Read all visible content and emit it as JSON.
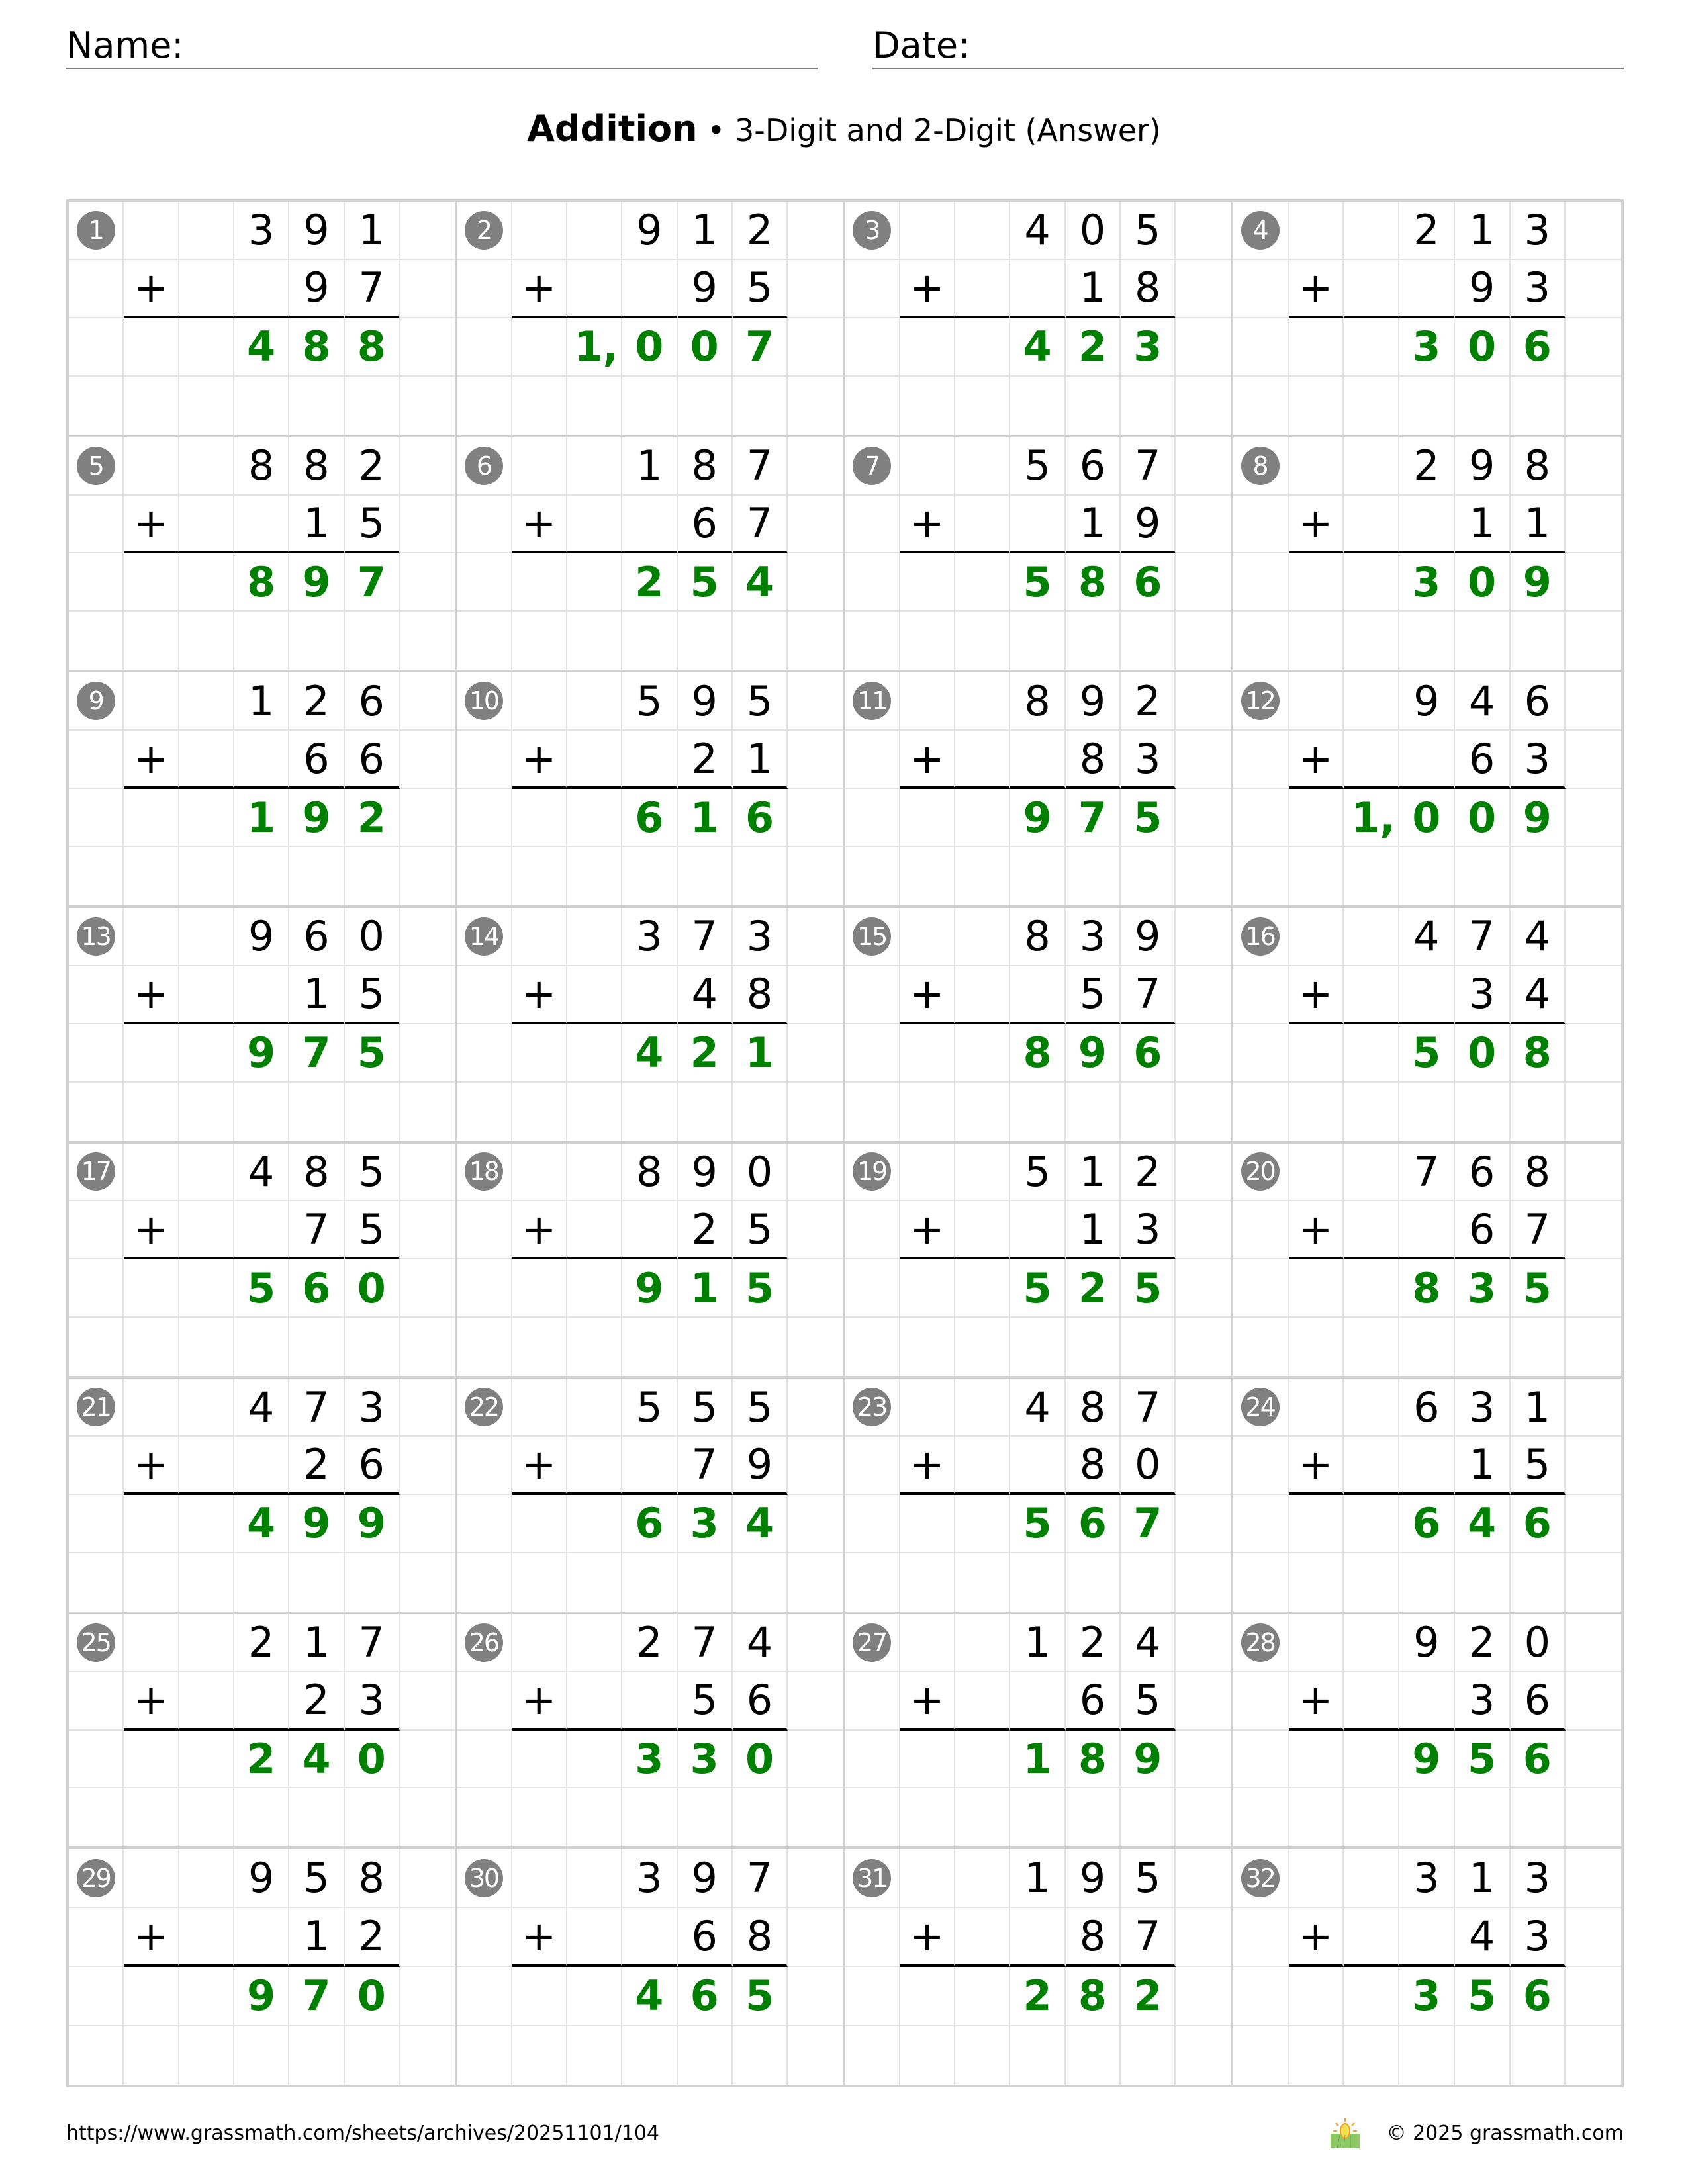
{
  "header": {
    "name_label": "Name:",
    "date_label": "Date:"
  },
  "title": {
    "main": "Addition",
    "subtitle": "• 3-Digit and 2-Digit (Answer)"
  },
  "colors": {
    "answer": "#008000",
    "badge": "#808080",
    "grid": "#d0d0d0"
  },
  "operator": "+",
  "problems": [
    {
      "n": "1",
      "top": "391",
      "bottom": "97",
      "answer": "488"
    },
    {
      "n": "2",
      "top": "912",
      "bottom": "95",
      "answer": "1,007"
    },
    {
      "n": "3",
      "top": "405",
      "bottom": "18",
      "answer": "423"
    },
    {
      "n": "4",
      "top": "213",
      "bottom": "93",
      "answer": "306"
    },
    {
      "n": "5",
      "top": "882",
      "bottom": "15",
      "answer": "897"
    },
    {
      "n": "6",
      "top": "187",
      "bottom": "67",
      "answer": "254"
    },
    {
      "n": "7",
      "top": "567",
      "bottom": "19",
      "answer": "586"
    },
    {
      "n": "8",
      "top": "298",
      "bottom": "11",
      "answer": "309"
    },
    {
      "n": "9",
      "top": "126",
      "bottom": "66",
      "answer": "192"
    },
    {
      "n": "10",
      "top": "595",
      "bottom": "21",
      "answer": "616"
    },
    {
      "n": "11",
      "top": "892",
      "bottom": "83",
      "answer": "975"
    },
    {
      "n": "12",
      "top": "946",
      "bottom": "63",
      "answer": "1,009"
    },
    {
      "n": "13",
      "top": "960",
      "bottom": "15",
      "answer": "975"
    },
    {
      "n": "14",
      "top": "373",
      "bottom": "48",
      "answer": "421"
    },
    {
      "n": "15",
      "top": "839",
      "bottom": "57",
      "answer": "896"
    },
    {
      "n": "16",
      "top": "474",
      "bottom": "34",
      "answer": "508"
    },
    {
      "n": "17",
      "top": "485",
      "bottom": "75",
      "answer": "560"
    },
    {
      "n": "18",
      "top": "890",
      "bottom": "25",
      "answer": "915"
    },
    {
      "n": "19",
      "top": "512",
      "bottom": "13",
      "answer": "525"
    },
    {
      "n": "20",
      "top": "768",
      "bottom": "67",
      "answer": "835"
    },
    {
      "n": "21",
      "top": "473",
      "bottom": "26",
      "answer": "499"
    },
    {
      "n": "22",
      "top": "555",
      "bottom": "79",
      "answer": "634"
    },
    {
      "n": "23",
      "top": "487",
      "bottom": "80",
      "answer": "567"
    },
    {
      "n": "24",
      "top": "631",
      "bottom": "15",
      "answer": "646"
    },
    {
      "n": "25",
      "top": "217",
      "bottom": "23",
      "answer": "240"
    },
    {
      "n": "26",
      "top": "274",
      "bottom": "56",
      "answer": "330"
    },
    {
      "n": "27",
      "top": "124",
      "bottom": "65",
      "answer": "189"
    },
    {
      "n": "28",
      "top": "920",
      "bottom": "36",
      "answer": "956"
    },
    {
      "n": "29",
      "top": "958",
      "bottom": "12",
      "answer": "970"
    },
    {
      "n": "30",
      "top": "397",
      "bottom": "68",
      "answer": "465"
    },
    {
      "n": "31",
      "top": "195",
      "bottom": "87",
      "answer": "282"
    },
    {
      "n": "32",
      "top": "313",
      "bottom": "43",
      "answer": "356"
    }
  ],
  "footer": {
    "url": "https://www.grassmath.com/sheets/archives/20251101/104",
    "copyright": "© 2025 grassmath.com",
    "logo_icon": "sun-grass-logo-icon"
  }
}
